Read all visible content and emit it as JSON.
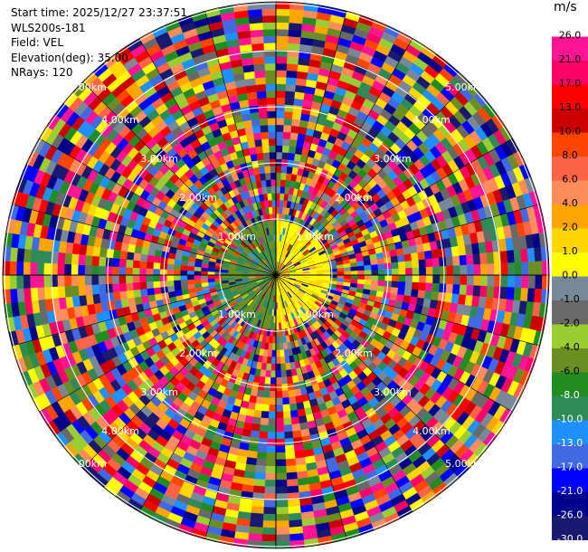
{
  "info": {
    "start_time": "Start time: 2025/12/27 23:37:51",
    "instrument": "WLS200s-181",
    "field": "Field: VEL",
    "elevation": "Elevation(deg): 35.00",
    "nrays": "NRays: 120"
  },
  "colorbar": {
    "unit": "m/s",
    "ticks": [
      "26.0",
      "21.0",
      "17.0",
      "13.0",
      "10.0",
      "8.0",
      "6.0",
      "4.0",
      "2.0",
      "1.0",
      "0.0",
      "-1.0",
      "-2.0",
      "-4.0",
      "-6.0",
      "-8.0",
      "-10.0",
      "-13.0",
      "-17.0",
      "-21.0",
      "-26.0",
      "-30.0"
    ],
    "colors": [
      "#ffffff",
      "#ff1493",
      "#ff0066",
      "#ff0000",
      "#cc0000",
      "#ff4500",
      "#ff6347",
      "#ff8c5a",
      "#ffa500",
      "#ffd700",
      "#ffff00",
      "#778899",
      "#696969",
      "#9acd32",
      "#6b8e23",
      "#228b22",
      "#2e8b57",
      "#1e90ff",
      "#4169e1",
      "#0000ff",
      "#00008b",
      "#191970"
    ]
  },
  "chart_data": {
    "type": "heatmap",
    "subtype": "polar PPI scan",
    "field": "VEL",
    "elevation_deg": 35.0,
    "nrays": 120,
    "range_ring_labels": [
      "1.00km",
      "2.00km",
      "3.00km",
      "4.00km",
      "5.00km"
    ],
    "color_range": [
      -30.0,
      26.0
    ],
    "unit": "m/s",
    "note_values": "near-range gates show low radial velocity (+/-4 m/s, green west / yellow east); far gates are dominated by noise spanning the full scale"
  }
}
